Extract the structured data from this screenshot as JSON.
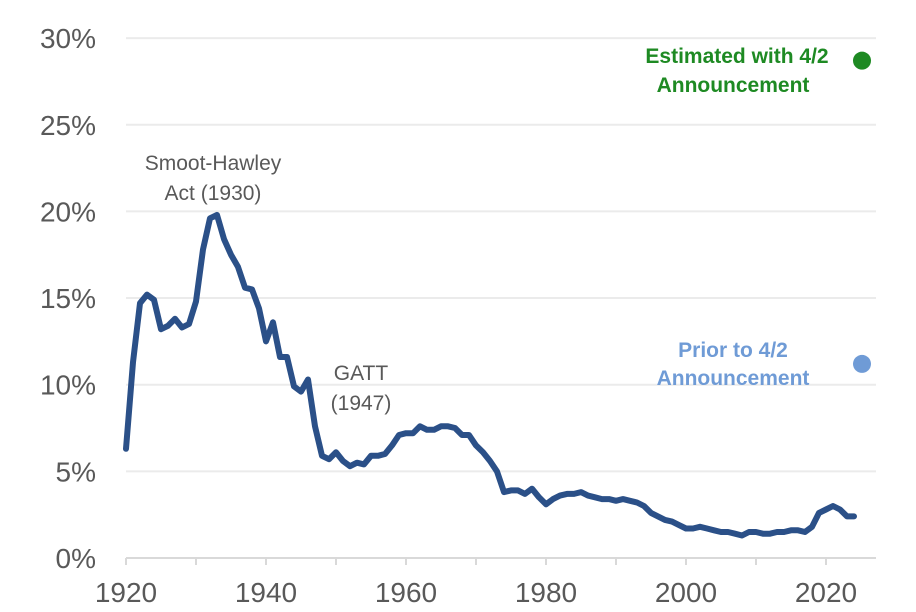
{
  "chart_data": {
    "type": "line",
    "title": "",
    "xlabel": "",
    "ylabel": "",
    "xlim": [
      1920,
      2026
    ],
    "ylim": [
      0,
      30
    ],
    "grid": true,
    "x_ticks": [
      "1920",
      "1940",
      "1960",
      "1980",
      "2000",
      "2020"
    ],
    "y_ticks": [
      "0%",
      "5%",
      "10%",
      "15%",
      "20%",
      "25%",
      "30%"
    ],
    "line_color": "#2b5088",
    "series": [
      {
        "x": [
          1920,
          1921,
          1922,
          1923,
          1924,
          1925,
          1926,
          1927,
          1928,
          1929,
          1930,
          1931,
          1932,
          1933,
          1934,
          1935,
          1936,
          1937,
          1938,
          1939,
          1940,
          1941,
          1942,
          1943,
          1944,
          1945,
          1946,
          1947,
          1948,
          1949,
          1950,
          1951,
          1952,
          1953,
          1954,
          1955,
          1956,
          1957,
          1958,
          1959,
          1960,
          1961,
          1962,
          1963,
          1964,
          1965,
          1966,
          1967,
          1968,
          1969,
          1970,
          1971,
          1972,
          1973,
          1974,
          1975,
          1976,
          1977,
          1978,
          1979,
          1980,
          1981,
          1982,
          1983,
          1984,
          1985,
          1986,
          1987,
          1988,
          1989,
          1990,
          1991,
          1992,
          1993,
          1994,
          1995,
          1996,
          1997,
          1998,
          1999,
          2000,
          2001,
          2002,
          2003,
          2004,
          2005,
          2006,
          2007,
          2008,
          2009,
          2010,
          2011,
          2012,
          2013,
          2014,
          2015,
          2016,
          2017,
          2018,
          2019,
          2020,
          2021,
          2022,
          2023,
          2024
        ],
        "values": [
          6.3,
          11.3,
          14.7,
          15.2,
          14.9,
          13.2,
          13.4,
          13.8,
          13.3,
          13.5,
          14.8,
          17.8,
          19.6,
          19.8,
          18.4,
          17.5,
          16.8,
          15.6,
          15.5,
          14.4,
          12.5,
          13.6,
          11.6,
          11.6,
          9.9,
          9.6,
          10.3,
          7.6,
          5.9,
          5.7,
          6.1,
          5.6,
          5.3,
          5.5,
          5.4,
          5.9,
          5.9,
          6.0,
          6.5,
          7.1,
          7.2,
          7.2,
          7.6,
          7.4,
          7.4,
          7.6,
          7.6,
          7.5,
          7.1,
          7.1,
          6.5,
          6.1,
          5.6,
          5.0,
          3.8,
          3.9,
          3.9,
          3.7,
          4.0,
          3.5,
          3.1,
          3.4,
          3.6,
          3.7,
          3.7,
          3.8,
          3.6,
          3.5,
          3.4,
          3.4,
          3.3,
          3.4,
          3.3,
          3.2,
          3.0,
          2.6,
          2.4,
          2.2,
          2.1,
          1.9,
          1.7,
          1.7,
          1.8,
          1.7,
          1.6,
          1.5,
          1.5,
          1.4,
          1.3,
          1.5,
          1.5,
          1.4,
          1.4,
          1.5,
          1.5,
          1.6,
          1.6,
          1.5,
          1.8,
          2.6,
          2.8,
          3.0,
          2.8,
          2.4,
          2.4
        ]
      }
    ],
    "points": [
      {
        "label_lines": [
          "Estimated with 4/2",
          "Announcement"
        ],
        "x": 2025,
        "y": 28.7,
        "color": "#1e8a23"
      },
      {
        "label_lines": [
          "Prior to 4/2",
          "Announcement"
        ],
        "x": 2025,
        "y": 11.2,
        "color": "#6f9bd6"
      }
    ],
    "annotations": [
      {
        "lines": [
          "Smoot-Hawley",
          "Act (1930)"
        ]
      },
      {
        "lines": [
          "GATT",
          "(1947)"
        ]
      }
    ]
  }
}
